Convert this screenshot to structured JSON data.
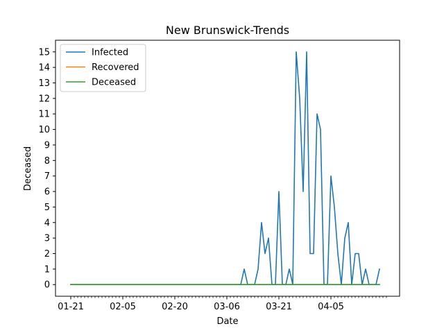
{
  "chart_data": {
    "type": "line",
    "title": "New Brunswick-Trends",
    "xlabel": "Date",
    "ylabel": "Deceased",
    "x_tick_labels": [
      "01-21",
      "02-05",
      "02-20",
      "03-06",
      "03-21",
      "04-05"
    ],
    "ylim": [
      -0.75,
      15.75
    ],
    "y_ticks": [
      0,
      1,
      2,
      3,
      4,
      5,
      6,
      7,
      8,
      9,
      10,
      11,
      12,
      13,
      14,
      15
    ],
    "x_first_date": "01-21",
    "x_last_date": "04-21",
    "legend_position": "upper-left",
    "grid": false,
    "series": [
      {
        "name": "Infected",
        "color": "#1f77b4",
        "points": [
          [
            "01-21",
            0
          ],
          [
            "03-10",
            0
          ],
          [
            "03-11",
            1
          ],
          [
            "03-12",
            0
          ],
          [
            "03-13",
            0
          ],
          [
            "03-14",
            0
          ],
          [
            "03-15",
            1
          ],
          [
            "03-16",
            4
          ],
          [
            "03-17",
            2
          ],
          [
            "03-18",
            3
          ],
          [
            "03-19",
            0
          ],
          [
            "03-20",
            0
          ],
          [
            "03-21",
            6
          ],
          [
            "03-22",
            0
          ],
          [
            "03-23",
            0
          ],
          [
            "03-24",
            1
          ],
          [
            "03-25",
            0
          ],
          [
            "03-26",
            15
          ],
          [
            "03-27",
            12
          ],
          [
            "03-28",
            6
          ],
          [
            "03-29",
            15
          ],
          [
            "03-30",
            2
          ],
          [
            "03-31",
            2
          ],
          [
            "04-01",
            11
          ],
          [
            "04-02",
            10
          ],
          [
            "04-03",
            0
          ],
          [
            "04-04",
            0
          ],
          [
            "04-05",
            7
          ],
          [
            "04-06",
            5
          ],
          [
            "04-07",
            2
          ],
          [
            "04-08",
            0
          ],
          [
            "04-09",
            3
          ],
          [
            "04-10",
            4
          ],
          [
            "04-11",
            0
          ],
          [
            "04-12",
            2
          ],
          [
            "04-13",
            2
          ],
          [
            "04-14",
            0
          ],
          [
            "04-15",
            1
          ],
          [
            "04-16",
            0
          ],
          [
            "04-17",
            0
          ],
          [
            "04-18",
            0
          ],
          [
            "04-19",
            1
          ]
        ]
      },
      {
        "name": "Recovered",
        "color": "#ff7f0e",
        "points": [
          [
            "01-21",
            0
          ],
          [
            "04-19",
            0
          ]
        ]
      },
      {
        "name": "Deceased",
        "color": "#2ca02c",
        "points": [
          [
            "01-21",
            0
          ],
          [
            "04-19",
            0
          ]
        ]
      }
    ]
  }
}
